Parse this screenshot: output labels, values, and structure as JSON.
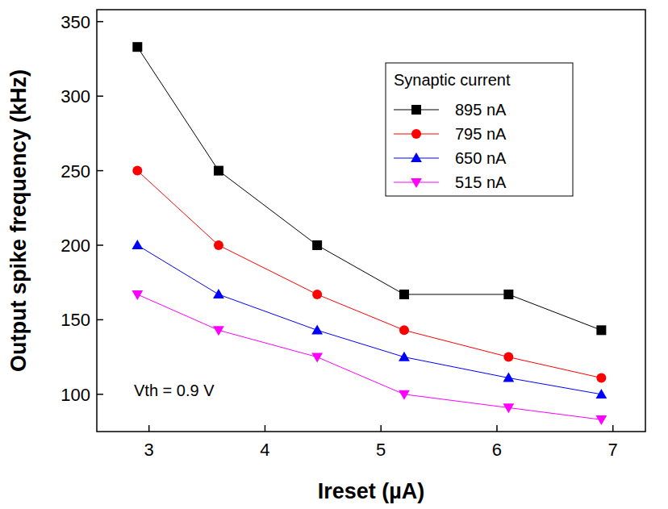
{
  "chart_data": {
    "type": "line",
    "x_label": "Ireset (µA)",
    "y_label": "Output spike frequency (kHz)",
    "legend_title": "Synaptic current",
    "annotations": [
      "Vth = 0.9 V"
    ],
    "x": [
      2.9,
      3.6,
      4.45,
      5.2,
      6.1,
      6.9
    ],
    "series": [
      {
        "name": "895 nA",
        "color": "#000000",
        "marker": "square",
        "values": [
          333,
          250,
          200,
          167,
          167,
          143
        ]
      },
      {
        "name": "795 nA",
        "color": "#ff0000",
        "marker": "circle",
        "values": [
          250,
          200,
          167,
          143,
          125,
          111
        ]
      },
      {
        "name": "650 nA",
        "color": "#0000ff",
        "marker": "triangle-up",
        "values": [
          200,
          167,
          143,
          125,
          111,
          100
        ]
      },
      {
        "name": "515 nA",
        "color": "#ff00ff",
        "marker": "triangle-down",
        "values": [
          167,
          143,
          125,
          100,
          91,
          83
        ]
      }
    ],
    "xlim": [
      2.55,
      7.28
    ],
    "ylim": [
      75,
      358
    ],
    "xticks": [
      3,
      4,
      5,
      6,
      7
    ],
    "yticks": [
      100,
      150,
      200,
      250,
      300,
      350
    ],
    "grid": false,
    "legend": "top-right"
  }
}
